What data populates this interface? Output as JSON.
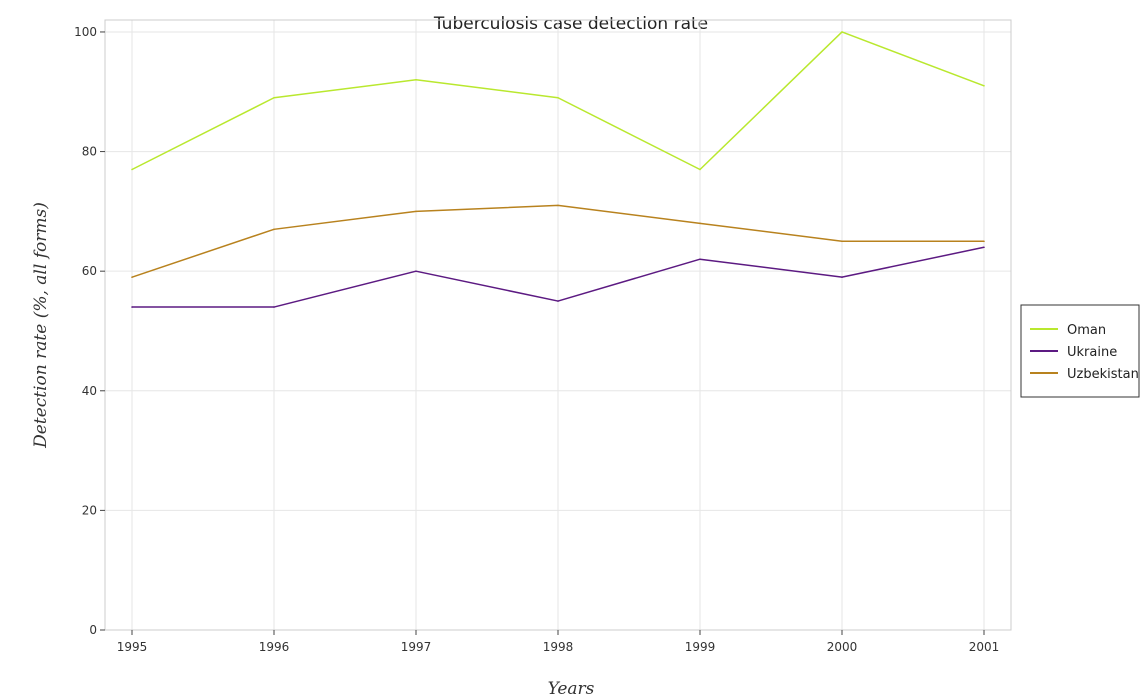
{
  "chart_data": {
    "type": "line",
    "title": "Tuberculosis case detection rate",
    "xlabel": "Years",
    "ylabel": "Detection rate (%, all forms)",
    "categories": [
      "1995",
      "1996",
      "1997",
      "1998",
      "1999",
      "2000",
      "2001"
    ],
    "ylim": [
      0,
      102
    ],
    "yticks": [
      0,
      20,
      40,
      60,
      80,
      100
    ],
    "grid": true,
    "legend_position": "right",
    "series": [
      {
        "name": "Oman",
        "color": "#b9e82e",
        "values": [
          77,
          89,
          92,
          89,
          77,
          100,
          91
        ]
      },
      {
        "name": "Ukraine",
        "color": "#5c1a82",
        "values": [
          54,
          54,
          60,
          55,
          62,
          59,
          64
        ]
      },
      {
        "name": "Uzbekistan",
        "color": "#b8821e",
        "values": [
          59,
          67,
          70,
          71,
          68,
          65,
          65
        ]
      }
    ]
  }
}
